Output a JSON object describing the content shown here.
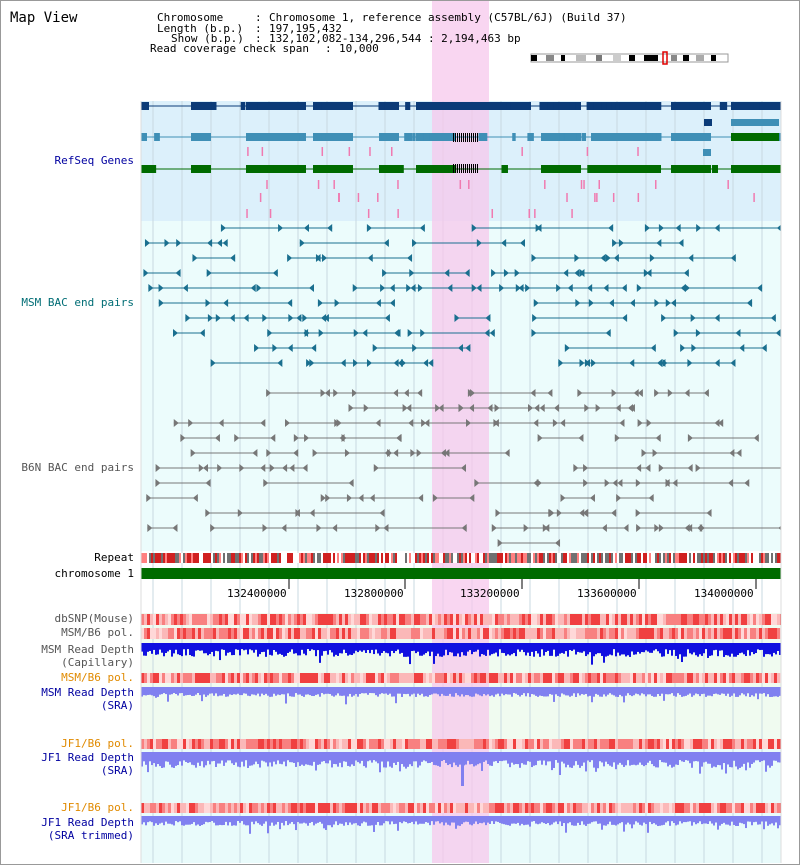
{
  "view": {
    "title": "Map View",
    "info": {
      "chromosome_key": "Chromosome",
      "chromosome_val": "Chromosome 1, reference assembly (C57BL/6J) (Build 37)",
      "length_key": "Length (b.p.)",
      "length_val": "197,195,432",
      "show_key": "Show (b.p.)",
      "show_val": "132,102,082-134,296,544 : 2,194,463 bp",
      "coverage_key": "Read coverage check span",
      "coverage_val": "10,000"
    }
  },
  "tracks": {
    "refseq": "RefSeq Genes",
    "msm_bac": "MSM BAC end pairs",
    "b6n_bac": "B6N BAC end pairs",
    "repeat": "Repeat",
    "chromosome": "chromosome 1",
    "dbsnp": "dbSNP(Mouse)",
    "msm_b6_pol_1": "MSM/B6 pol.",
    "msm_depth_cap_1": "MSM Read Depth",
    "msm_depth_cap_2": "(Capillary)",
    "msm_b6_pol_2": "MSM/B6 pol.",
    "msm_depth_sra_1": "MSM Read Depth",
    "msm_depth_sra_2": "(SRA)",
    "jf1_b6_pol_1": "JF1/B6 pol.",
    "jf1_depth_sra_1": "JF1 Read Depth",
    "jf1_depth_sra_2": "(SRA)",
    "jf1_b6_pol_2": "JF1/B6 pol.",
    "jf1_depth_trim_1": "JF1 Read Depth",
    "jf1_depth_trim_2": "(SRA trimmed)"
  },
  "axis": {
    "ticks": [
      "132400000",
      "132800000",
      "133200000",
      "133600000",
      "134000000"
    ]
  },
  "colors": {
    "refseq_bg": "#dcf0fb",
    "bac_bg": "#ecfcfc",
    "highlight": "#f7c8ec",
    "dark_navy": "#0b3b78",
    "steel": "#3f8fb6",
    "green": "#006b00",
    "teal_pair": "#1a6f8f",
    "gray_pair": "#777777",
    "depth_blue": "#1010e0",
    "depth_light": "#8080f0",
    "label_navy": "#0000a0",
    "label_teal": "#006d75",
    "label_gray": "#555555",
    "label_orange": "#e08a00"
  }
}
